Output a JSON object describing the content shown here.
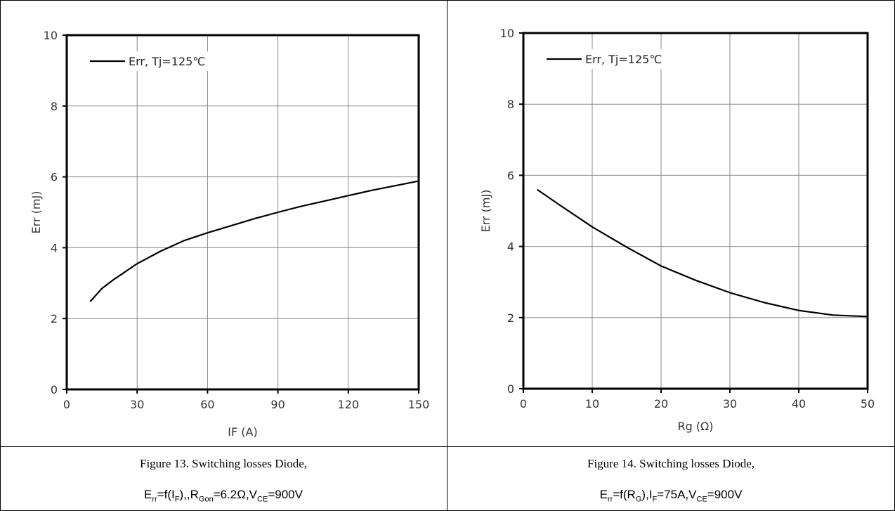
{
  "captions": [
    {
      "line1": "Figure 13. Switching losses Diode,",
      "line2": [
        {
          "t": "E",
          "sub": false
        },
        {
          "t": "rr",
          "sub": true
        },
        {
          "t": "=f(I",
          "sub": false
        },
        {
          "t": "F",
          "sub": true
        },
        {
          "t": "),,R",
          "sub": false
        },
        {
          "t": "Gon",
          "sub": true
        },
        {
          "t": "=6.2Ω,V",
          "sub": false
        },
        {
          "t": "CE",
          "sub": true
        },
        {
          "t": "=900V",
          "sub": false
        }
      ]
    },
    {
      "line1": "Figure 14. Switching losses Diode,",
      "line2": [
        {
          "t": "E",
          "sub": false
        },
        {
          "t": "rr",
          "sub": true
        },
        {
          "t": "=f(R",
          "sub": false
        },
        {
          "t": "G",
          "sub": true
        },
        {
          "t": "),I",
          "sub": false
        },
        {
          "t": "F",
          "sub": true
        },
        {
          "t": "=75A,V",
          "sub": false
        },
        {
          "t": "CE",
          "sub": true
        },
        {
          "t": "=900V",
          "sub": false
        }
      ]
    }
  ],
  "chart_data": [
    {
      "type": "line",
      "xlabel": "IF (A)",
      "ylabel": "Err  (mJ)",
      "xlim": [
        0,
        150
      ],
      "ylim": [
        0,
        10
      ],
      "xticks": [
        0,
        30,
        60,
        90,
        120,
        150
      ],
      "yticks": [
        0,
        2,
        4,
        6,
        8,
        10
      ],
      "grid": true,
      "legend": "top-left",
      "series": [
        {
          "name": "Err, Tj=125℃",
          "color": "#000000",
          "x": [
            10,
            15,
            20,
            30,
            40,
            50,
            60,
            70,
            80,
            90,
            100,
            110,
            120,
            130,
            140,
            150
          ],
          "y": [
            2.48,
            2.85,
            3.1,
            3.55,
            3.9,
            4.2,
            4.42,
            4.62,
            4.82,
            5.0,
            5.17,
            5.32,
            5.47,
            5.62,
            5.75,
            5.88
          ]
        }
      ]
    },
    {
      "type": "line",
      "xlabel": "Rg (Ω)",
      "ylabel": "Err  (mJ)",
      "xlim": [
        0,
        50
      ],
      "ylim": [
        0,
        10
      ],
      "xticks": [
        0,
        10,
        20,
        30,
        40,
        50
      ],
      "yticks": [
        0,
        2,
        4,
        6,
        8,
        10
      ],
      "grid": true,
      "legend": "top-left",
      "series": [
        {
          "name": "Err, Tj=125℃",
          "color": "#000000",
          "x": [
            2,
            5,
            10,
            15,
            20,
            25,
            30,
            35,
            40,
            45,
            50
          ],
          "y": [
            5.6,
            5.2,
            4.55,
            3.98,
            3.45,
            3.05,
            2.7,
            2.42,
            2.2,
            2.07,
            2.03
          ]
        }
      ]
    }
  ]
}
